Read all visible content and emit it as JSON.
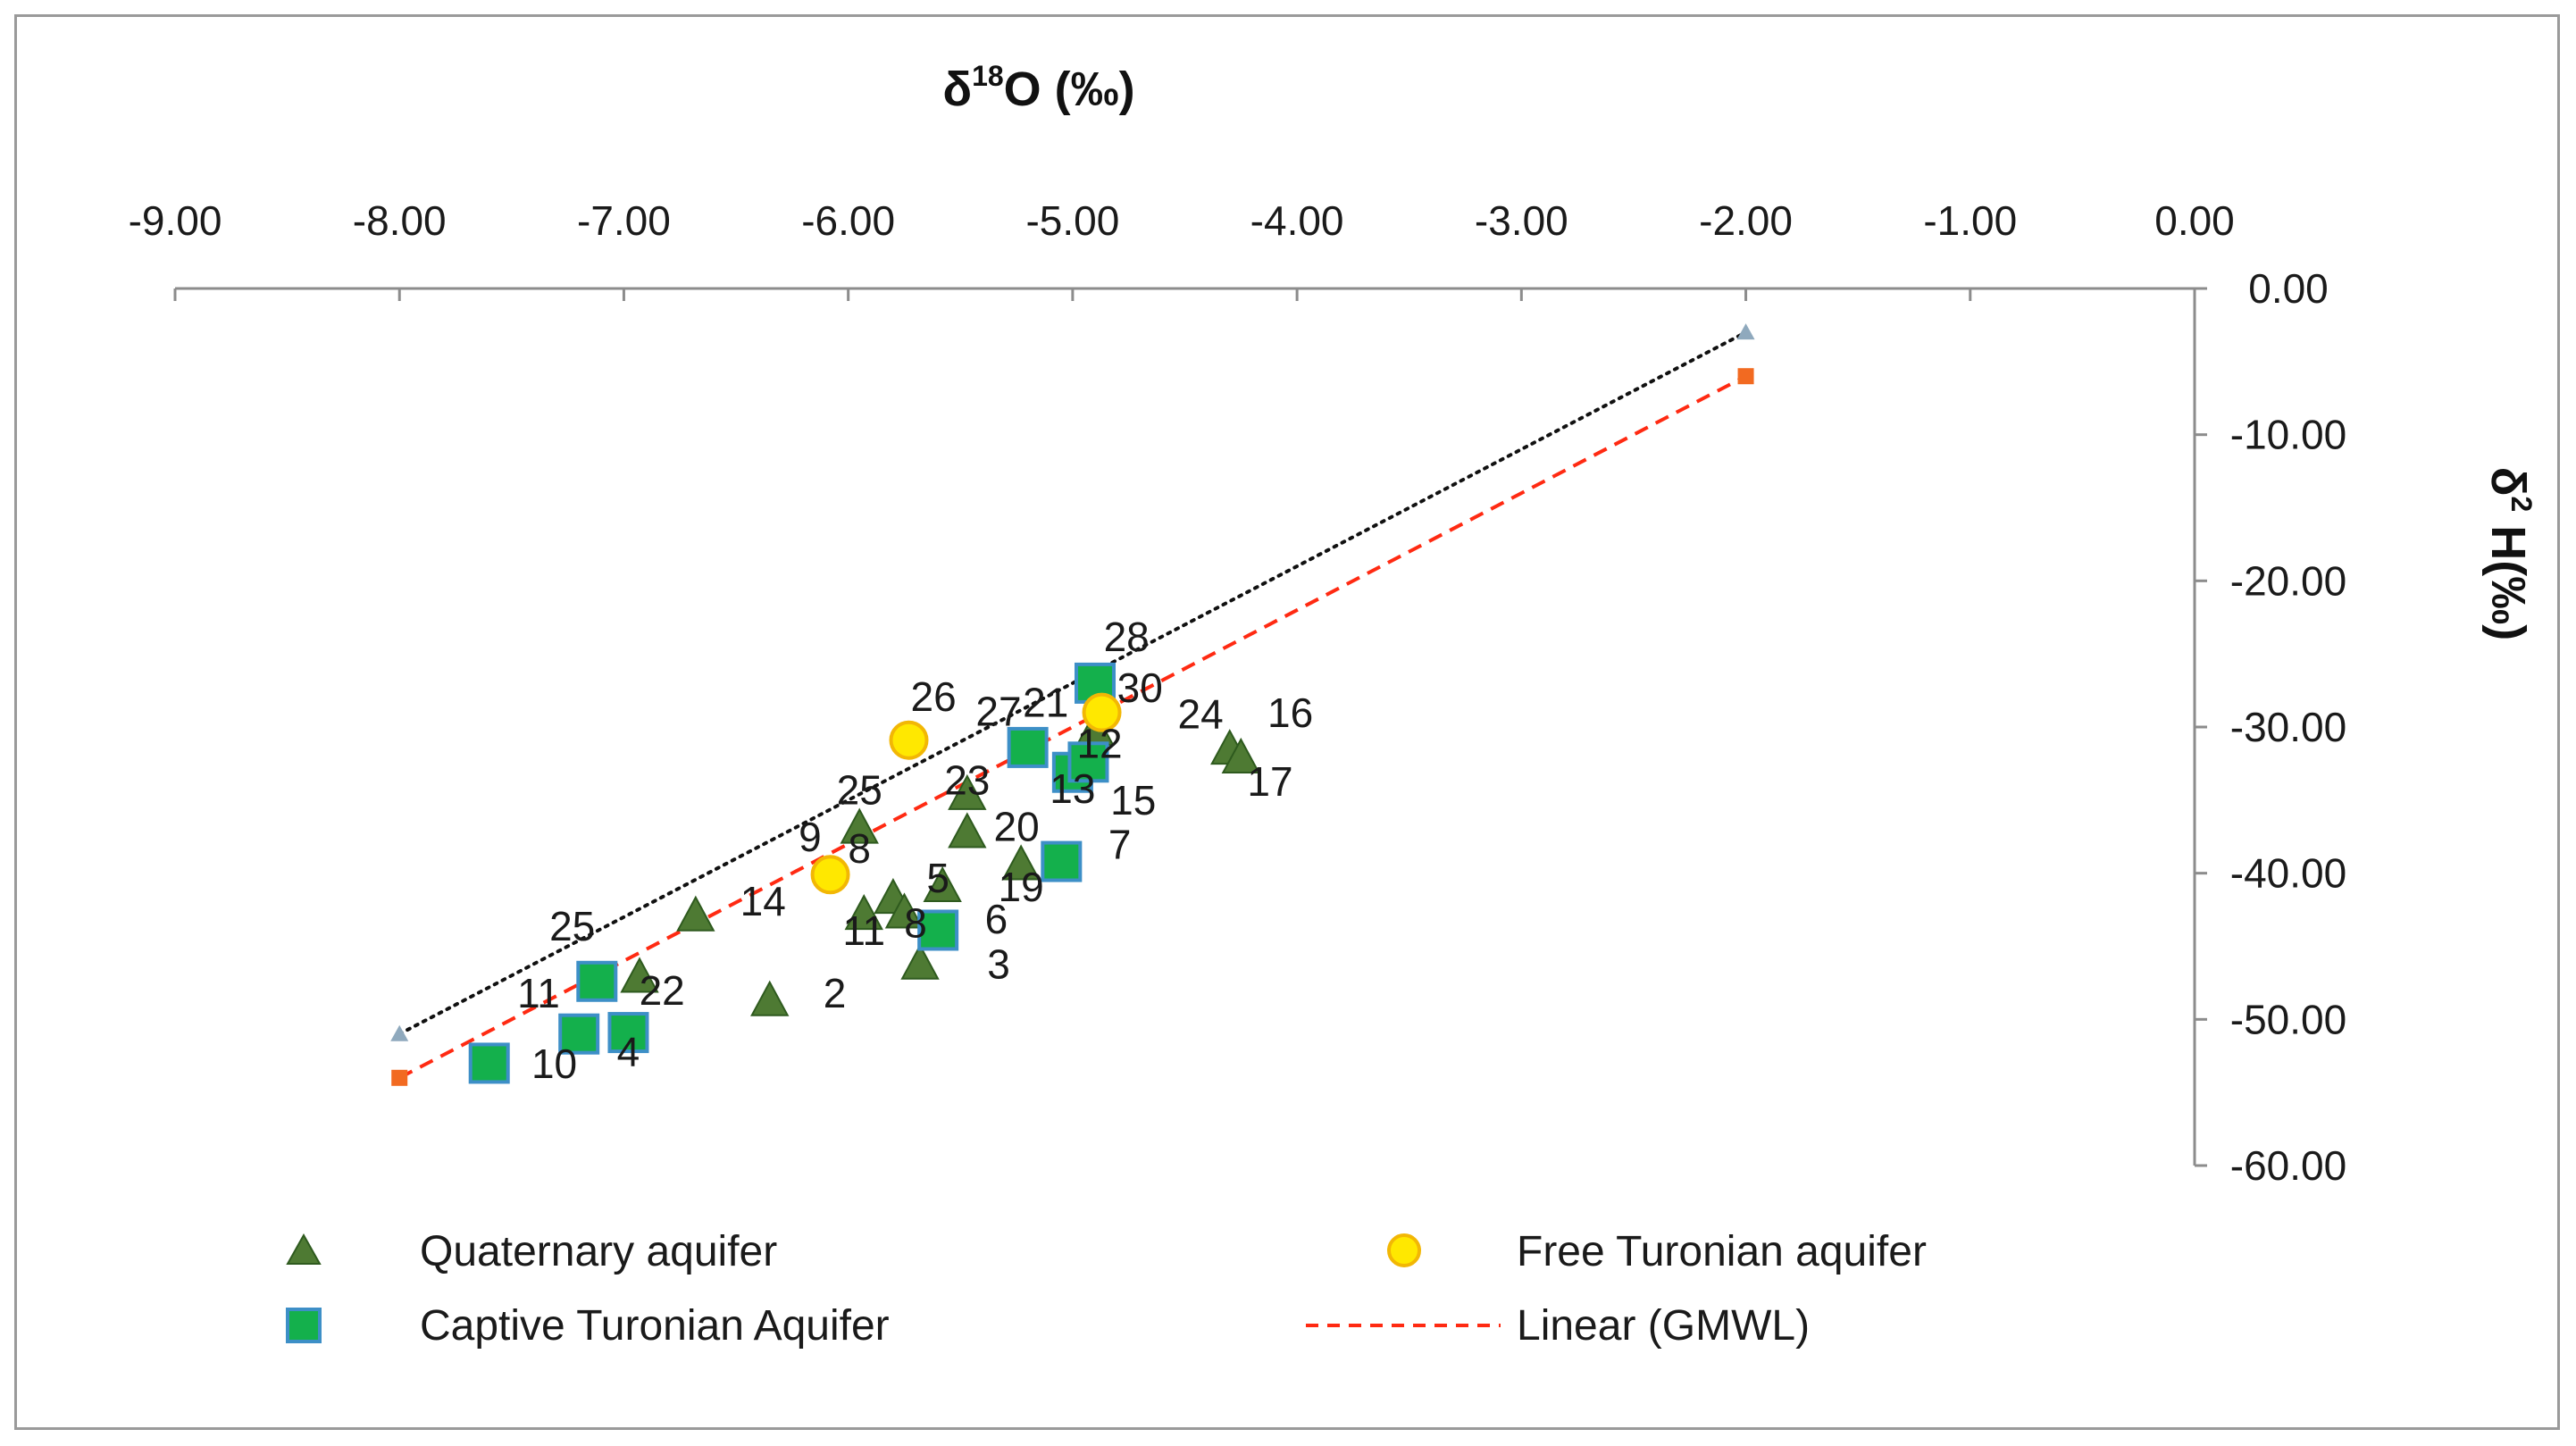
{
  "chart_data": {
    "type": "scatter",
    "x_axis": {
      "title_main": "δ",
      "title_sup": "18",
      "title_rest": "O  (‰)",
      "range": [
        -9,
        0
      ],
      "ticks": [
        -9,
        -8,
        -7,
        -6,
        -5,
        -4,
        -3,
        -2,
        -1,
        0
      ],
      "tick_labels": [
        "-9.00",
        "-8.00",
        "-7.00",
        "-6.00",
        "-5.00",
        "-4.00",
        "-3.00",
        "-2.00",
        "-1.00",
        "0.00"
      ],
      "position": "top"
    },
    "y_axis": {
      "title_main": "δ",
      "title_sup": "2",
      "title_rest": " H(‰)",
      "range": [
        -60,
        0
      ],
      "ticks": [
        0,
        -10,
        -20,
        -30,
        -40,
        -50,
        -60
      ],
      "tick_labels": [
        "0.00",
        "-10.00",
        "-20.00",
        "-30.00",
        "-40.00",
        "-50.00",
        "-60.00"
      ],
      "position": "right"
    },
    "series": [
      {
        "name": "Quaternary aquifer",
        "marker": "triangle",
        "color": "#4e7a33",
        "points": [
          {
            "x": -6.35,
            "y": -48.8
          },
          {
            "x": -5.68,
            "y": -46.3
          },
          {
            "x": -5.58,
            "y": -41.0
          },
          {
            "x": -5.8,
            "y": -41.8
          },
          {
            "x": -5.93,
            "y": -42.9
          },
          {
            "x": -5.75,
            "y": -42.8
          },
          {
            "x": -5.47,
            "y": -37.3
          },
          {
            "x": -5.23,
            "y": -39.5
          },
          {
            "x": -5.47,
            "y": -34.7
          },
          {
            "x": -6.68,
            "y": -43.0
          },
          {
            "x": -5.95,
            "y": -37.0
          },
          {
            "x": -6.93,
            "y": -47.2
          },
          {
            "x": -4.3,
            "y": -31.6
          },
          {
            "x": -4.25,
            "y": -32.2
          },
          {
            "x": -4.9,
            "y": -30.3
          }
        ]
      },
      {
        "name": "Captive Turonian Aquifer",
        "marker": "square",
        "color": "#14b04c",
        "points": [
          {
            "x": -7.6,
            "y": -53.0
          },
          {
            "x": -7.2,
            "y": -51.0
          },
          {
            "x": -6.98,
            "y": -50.9
          },
          {
            "x": -7.12,
            "y": -47.4
          },
          {
            "x": -5.6,
            "y": -43.9
          },
          {
            "x": -5.05,
            "y": -39.2
          },
          {
            "x": -5.0,
            "y": -33.1
          },
          {
            "x": -4.93,
            "y": -32.4
          },
          {
            "x": -5.2,
            "y": -31.4
          },
          {
            "x": -4.9,
            "y": -27.0
          }
        ]
      },
      {
        "name": "Free Turonian aquifer",
        "marker": "circle",
        "color": "#ffe800",
        "points": [
          {
            "x": -6.08,
            "y": -40.1
          },
          {
            "x": -5.73,
            "y": -30.9
          },
          {
            "x": -4.87,
            "y": -29.0
          }
        ]
      }
    ],
    "lines": [
      {
        "name": "Linear (GMWL)",
        "style": "dashed",
        "color": "#ff2a12",
        "x": [
          -8,
          -2
        ],
        "y": [
          -54,
          -6
        ],
        "end_marker_color": "#f26a21"
      },
      {
        "name": "",
        "style": "dotted",
        "color": "#111111",
        "x": [
          -8,
          -2
        ],
        "y": [
          -51,
          -3
        ],
        "end_marker_color": "#8fa9bd"
      }
    ],
    "point_labels": [
      {
        "text": "28",
        "x": -4.76,
        "y": -24.8
      },
      {
        "text": "30",
        "x": -4.7,
        "y": -28.3
      },
      {
        "text": "26",
        "x": -5.62,
        "y": -28.9
      },
      {
        "text": "27",
        "x": -5.33,
        "y": -29.9
      },
      {
        "text": "21",
        "x": -5.12,
        "y": -29.3
      },
      {
        "text": "24",
        "x": -4.43,
        "y": -30.1
      },
      {
        "text": "16",
        "x": -4.03,
        "y": -30.0
      },
      {
        "text": "12",
        "x": -4.88,
        "y": -32.1
      },
      {
        "text": "17",
        "x": -4.12,
        "y": -34.7
      },
      {
        "text": "23",
        "x": -5.47,
        "y": -34.6
      },
      {
        "text": "13",
        "x": -5.0,
        "y": -35.2
      },
      {
        "text": "15",
        "x": -4.73,
        "y": -36.0
      },
      {
        "text": "25",
        "x": -5.95,
        "y": -35.3
      },
      {
        "text": "20",
        "x": -5.25,
        "y": -37.8
      },
      {
        "text": "9",
        "x": -6.17,
        "y": -38.5
      },
      {
        "text": "8",
        "x": -5.95,
        "y": -39.3
      },
      {
        "text": "7",
        "x": -4.79,
        "y": -39.0
      },
      {
        "text": "5",
        "x": -5.6,
        "y": -41.3
      },
      {
        "text": "19",
        "x": -5.23,
        "y": -41.9
      },
      {
        "text": "14",
        "x": -6.38,
        "y": -42.9
      },
      {
        "text": "6",
        "x": -5.34,
        "y": -44.1
      },
      {
        "text": "11",
        "x": -5.93,
        "y": -44.9
      },
      {
        "text": "8",
        "x": -5.7,
        "y": -44.4
      },
      {
        "text": "25",
        "x": -7.23,
        "y": -44.6
      },
      {
        "text": "3",
        "x": -5.33,
        "y": -47.2
      },
      {
        "text": "11",
        "x": -7.38,
        "y": -49.2
      },
      {
        "text": "22",
        "x": -6.83,
        "y": -49.0
      },
      {
        "text": "2",
        "x": -6.06,
        "y": -49.2
      },
      {
        "text": "4",
        "x": -6.98,
        "y": -53.2
      },
      {
        "text": "10",
        "x": -7.31,
        "y": -54.0
      }
    ],
    "legend": [
      {
        "label": "Quaternary aquifer",
        "marker": "triangle",
        "placement": "bottom-left"
      },
      {
        "label": "Free Turonian aquifer",
        "marker": "circle",
        "placement": "bottom-right"
      },
      {
        "label": "Captive Turonian Aquifer",
        "marker": "square",
        "placement": "bottom-left"
      },
      {
        "label": "Linear (GMWL)",
        "marker": "dashed-line",
        "placement": "bottom-right"
      }
    ]
  },
  "colors": {
    "axis": "#8c8c8c",
    "triangle_fill": "#4e7a33",
    "triangle_stroke": "#2e5a1e",
    "square_fill": "#14b04c",
    "square_stroke": "#3d8fc7",
    "circle_fill": "#ffe800",
    "circle_stroke": "#f2b705"
  }
}
